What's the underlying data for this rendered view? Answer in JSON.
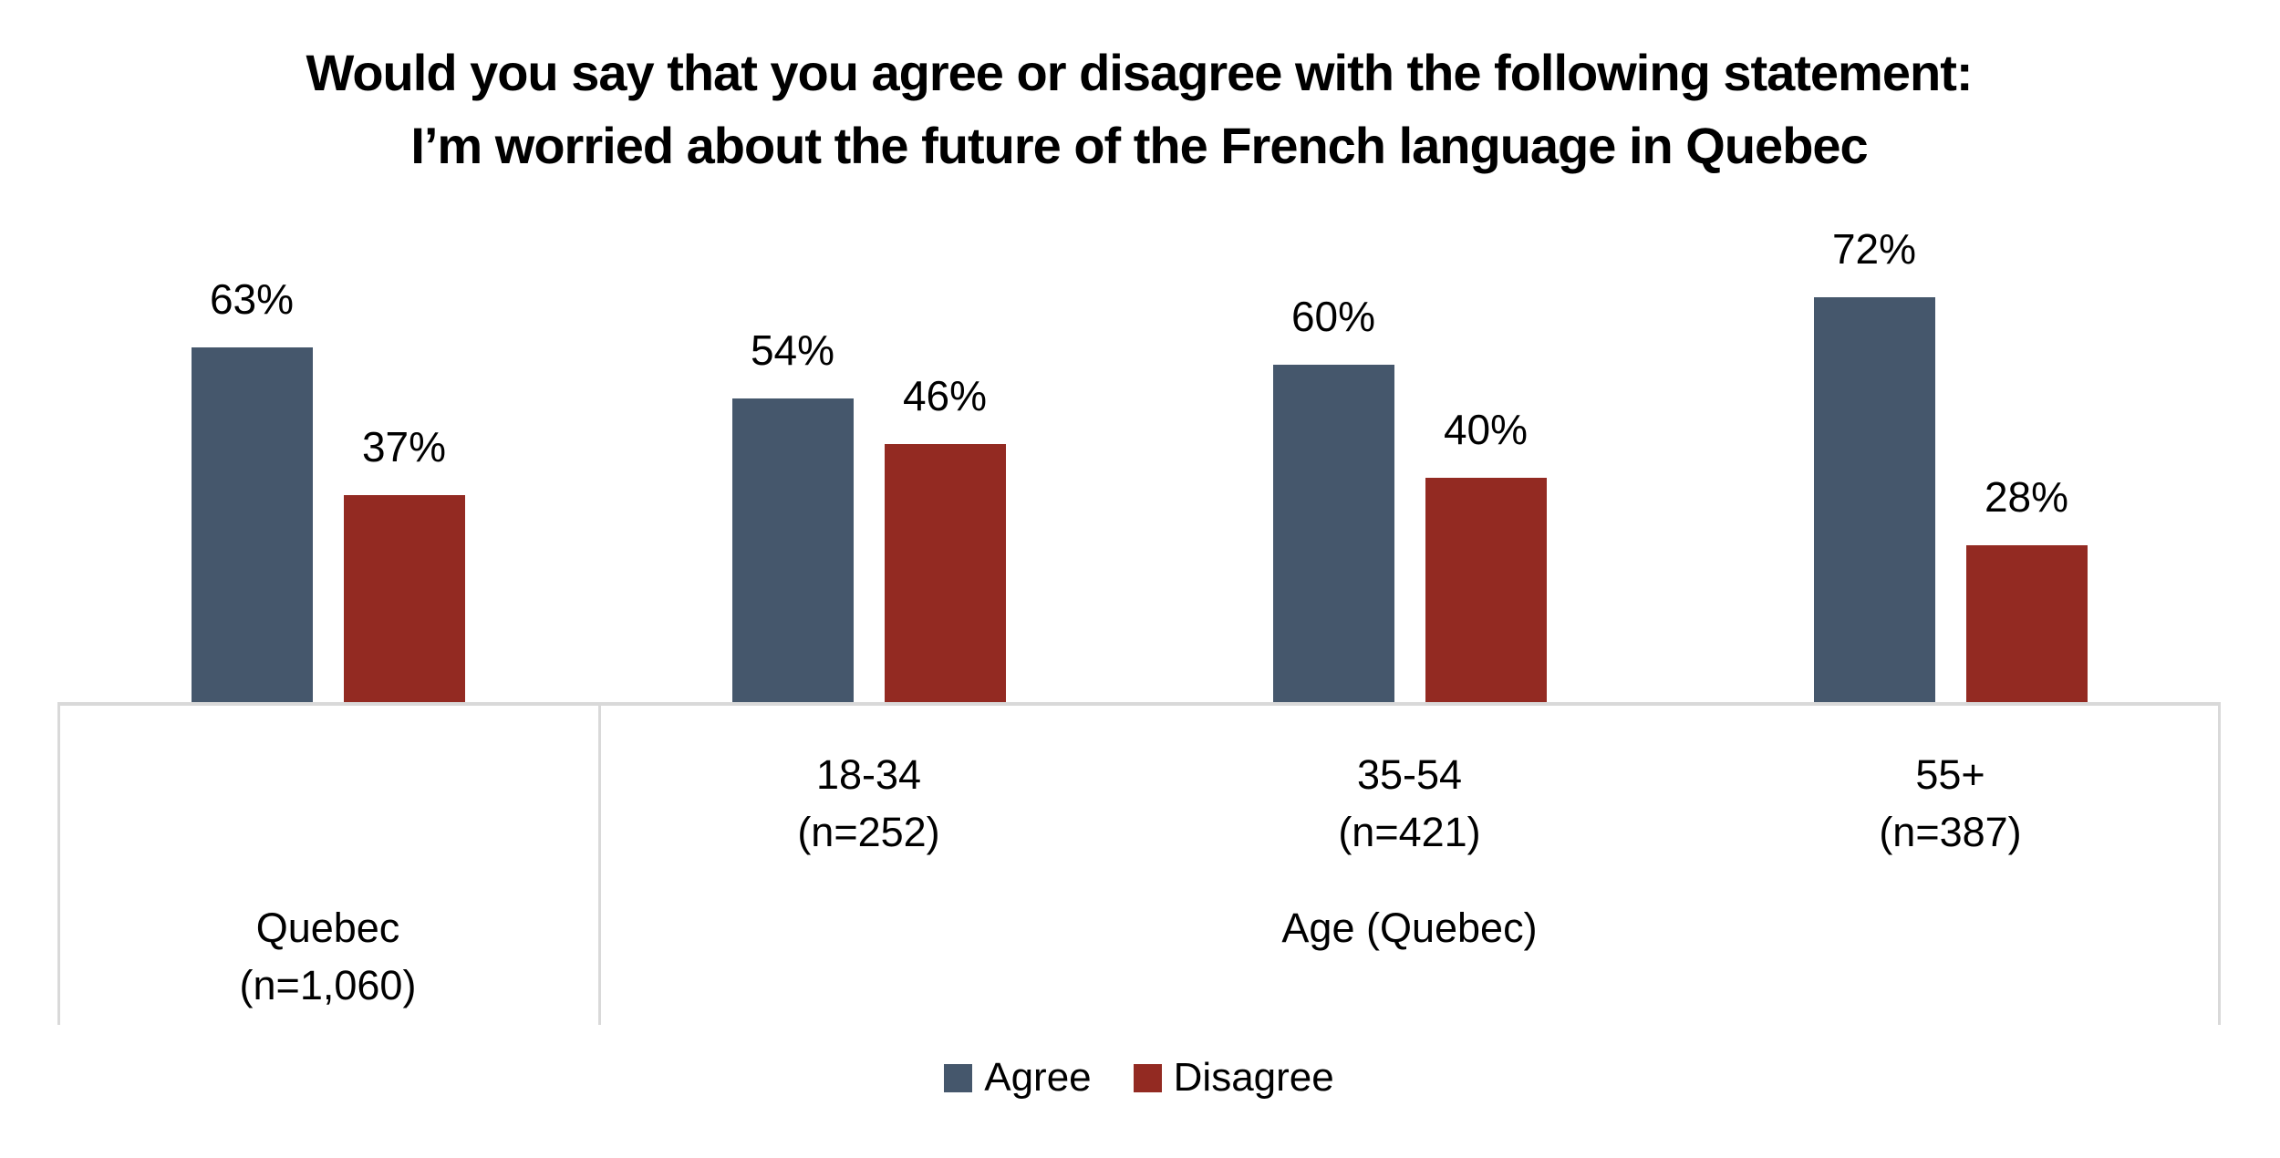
{
  "page": {
    "background": "#FFFFFF"
  },
  "chart_data": {
    "type": "bar",
    "title_lines": [
      "Would you say that you agree or disagree with the following statement:",
      "I’m worried about the future of the French language in Quebec"
    ],
    "title": "Would you say that you agree or disagree with the following statement: I’m worried about the future of the French language in Quebec",
    "value_suffix": "%",
    "ylim": [
      0,
      100
    ],
    "grid": false,
    "data_labels": true,
    "legend_position": "bottom",
    "axis_color": "#D9D9D9",
    "text_color": "#000000",
    "series": [
      {
        "name": "Agree",
        "color": "#45576C",
        "values": [
          63,
          54,
          60,
          72
        ]
      },
      {
        "name": "Disagree",
        "color": "#932A22",
        "values": [
          37,
          46,
          40,
          28
        ]
      }
    ],
    "categories": [
      {
        "label_lines": []
      },
      {
        "label_lines": [
          "18-34",
          "(n=252)"
        ]
      },
      {
        "label_lines": [
          "35-54",
          "(n=421)"
        ]
      },
      {
        "label_lines": [
          "55+",
          "(n=387)"
        ]
      }
    ],
    "category_sections": [
      {
        "label_lines": [
          "Quebec",
          "(n=1,060)"
        ],
        "span": 1
      },
      {
        "label_lines": [
          "Age (Quebec)"
        ],
        "span": 3
      }
    ]
  }
}
